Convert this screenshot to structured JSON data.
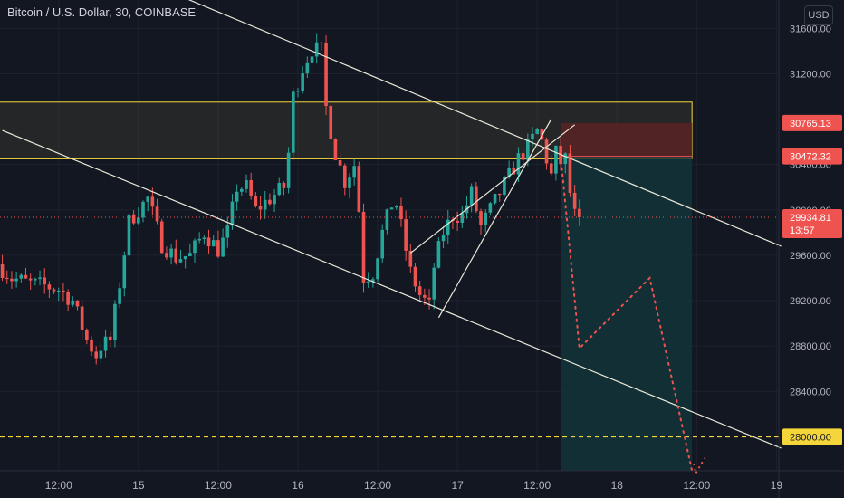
{
  "header": {
    "title": "Bitcoin / U.S. Dollar, 30, COINBASE",
    "currency": "USD"
  },
  "colors": {
    "background": "#131722",
    "grid": "#1e222d",
    "up": "#26a69a",
    "down": "#ef5350",
    "trendline": "#e9e9d8",
    "zone_border": "#f5d63a",
    "target_line": "#f5d63a",
    "price_line": "#ef5350",
    "stop_fill": "#5a2323",
    "target_fill": "#13343a"
  },
  "chart_data": {
    "type": "candlestick",
    "symbol": "Bitcoin / U.S. Dollar",
    "interval": "30",
    "exchange": "COINBASE",
    "ylim": [
      27700,
      31850
    ],
    "yticks": [
      28400,
      28800,
      29200,
      29600,
      30000,
      30400,
      31200,
      31600
    ],
    "y_tick_labels": [
      "28400.00",
      "28800.00",
      "29200.00",
      "29600.00",
      "30000.00",
      "30400.00",
      "31200.00",
      "31600.00"
    ],
    "x_ticks": [
      {
        "label": "12:00",
        "slot": 12
      },
      {
        "label": "15",
        "slot": 29
      },
      {
        "label": "12:00",
        "slot": 46
      },
      {
        "label": "16",
        "slot": 63
      },
      {
        "label": "12:00",
        "slot": 80
      },
      {
        "label": "17",
        "slot": 97
      },
      {
        "label": "12:00",
        "slot": 114
      },
      {
        "label": "18",
        "slot": 131
      },
      {
        "label": "12:00",
        "slot": 148
      },
      {
        "label": "19",
        "slot": 165
      }
    ],
    "anchors": [
      [
        0,
        29520
      ],
      [
        3,
        29400
      ],
      [
        7,
        29350
      ],
      [
        10,
        29330
      ],
      [
        13,
        29300
      ],
      [
        16,
        29200
      ],
      [
        19,
        28850
      ],
      [
        21,
        28720
      ],
      [
        22,
        28800
      ],
      [
        24,
        28850
      ],
      [
        26,
        29350
      ],
      [
        28,
        29900
      ],
      [
        32,
        30100
      ],
      [
        35,
        29700
      ],
      [
        38,
        29580
      ],
      [
        41,
        29600
      ],
      [
        44,
        29800
      ],
      [
        47,
        29650
      ],
      [
        49,
        29800
      ],
      [
        51,
        30200
      ],
      [
        53,
        30200
      ],
      [
        55,
        30000
      ],
      [
        58,
        30100
      ],
      [
        61,
        30200
      ],
      [
        62,
        30500
      ],
      [
        63,
        31000
      ],
      [
        65,
        31250
      ],
      [
        67,
        31420
      ],
      [
        69,
        31400
      ],
      [
        70,
        30900
      ],
      [
        72,
        30500
      ],
      [
        74,
        30250
      ],
      [
        76,
        30400
      ],
      [
        77,
        30000
      ],
      [
        78,
        29400
      ],
      [
        80,
        29450
      ],
      [
        82,
        29800
      ],
      [
        84,
        30050
      ],
      [
        85,
        30050
      ],
      [
        86,
        29850
      ],
      [
        88,
        29450
      ],
      [
        90,
        29250
      ],
      [
        92,
        29150
      ],
      [
        93,
        29500
      ],
      [
        95,
        29800
      ],
      [
        97,
        29950
      ],
      [
        99,
        29950
      ],
      [
        101,
        30150
      ],
      [
        103,
        29850
      ],
      [
        105,
        30000
      ],
      [
        107,
        30150
      ],
      [
        109,
        30300
      ],
      [
        111,
        30450
      ],
      [
        113,
        30550
      ],
      [
        115,
        30700
      ],
      [
        116,
        30600
      ],
      [
        117,
        30450
      ],
      [
        118,
        30300
      ],
      [
        119,
        30500
      ],
      [
        120,
        30420
      ],
      [
        121,
        30450
      ],
      [
        122,
        30150
      ],
      [
        123,
        29950
      ]
    ],
    "last_candle_slot": 123,
    "candle_slots_total": 166,
    "price_labels": [
      {
        "text": "30765.13",
        "price": 30765.13
      },
      {
        "text": "30472.32",
        "price": 30472.32
      },
      {
        "text": "29934.81",
        "price": 29934.81,
        "countdown": "13:57"
      },
      {
        "text": "28000.00",
        "price": 28000
      }
    ],
    "current_price": 29934.81,
    "countdown": "13:57",
    "resistance_zone": {
      "slot_from": 0,
      "slot_to": 147,
      "price_from": 30450,
      "price_to": 30950
    },
    "position": {
      "slot_from": 119,
      "slot_to": 147,
      "entry": 30472.32,
      "stop": 30765.13,
      "target": 27700
    },
    "target_level": 28000,
    "trendlines": [
      {
        "from": {
          "slot": 37,
          "price": 31900
        },
        "to": {
          "slot": 166,
          "price": 29680
        }
      },
      {
        "from": {
          "slot": 0,
          "price": 30700
        },
        "to": {
          "slot": 166,
          "price": 27900
        }
      },
      {
        "from": {
          "slot": 93,
          "price": 29050
        },
        "to": {
          "slot": 117,
          "price": 30800
        }
      },
      {
        "from": {
          "slot": 87,
          "price": 29620
        },
        "to": {
          "slot": 122,
          "price": 30750
        }
      }
    ],
    "projection": [
      {
        "slot": 119,
        "price": 30480
      },
      {
        "slot": 123,
        "price": 28780
      },
      {
        "slot": 138,
        "price": 29400
      },
      {
        "slot": 147,
        "price": 27700
      }
    ]
  }
}
